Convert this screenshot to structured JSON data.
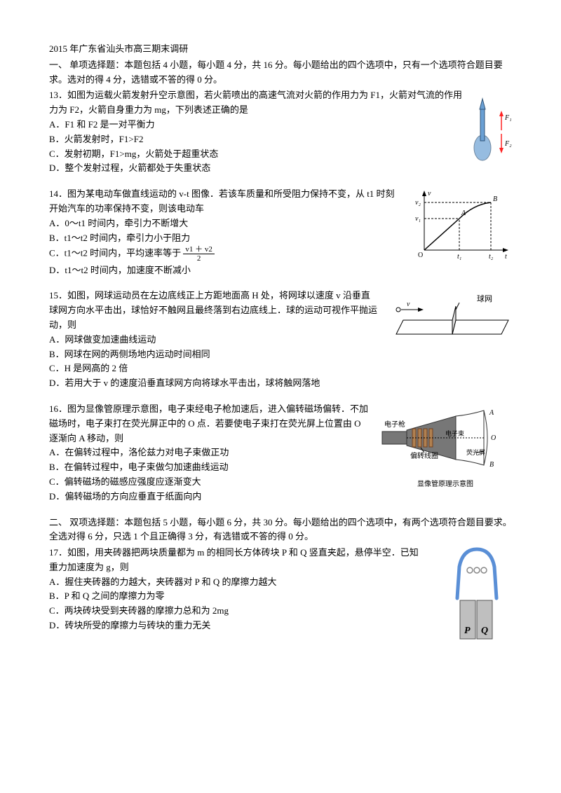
{
  "header": {
    "title": "2015 年广东省汕头市高三期末调研",
    "section1": "一、 单项选择题：本题包括 4 小题，每小题 4 分，共 16 分。每小题给出的四个选项中，只有一个选项符合题目要求。选对的得 4 分，选错或不答的得 0 分。"
  },
  "q13": {
    "stem": "13．如图为运载火箭发射升空示意图，若火箭喷出的高速气流对火箭的作用力为 F1，火箭对气流的作用力为 F2，火箭自身重力为 mg，下列表述正确的是",
    "A": "A．F1 和 F2 是一对平衡力",
    "B": "B．火箭发射时，F1>F2",
    "C": "C．发射初期，F1>mg，火箭处于超重状态",
    "D": "D．整个发射过程，火箭都处于失重状态",
    "fig": {
      "rocket_fill": "#6aa0d4",
      "arrow": "#ff2222",
      "labels": [
        "F₁",
        "F₂"
      ]
    }
  },
  "q14": {
    "stem": "14．图为某电动车做直线运动的 v-t 图像．若该车质量和所受阻力保持不变，从 t1 时刻开始汽车的功率保持不变，则该电动车",
    "A": "A．0～t1 时间内，牵引力不断增大",
    "B": "B．t1～t2 时间内，牵引力小于阻力",
    "C_pre": "C．t1～t2 时间内，平均速率等于",
    "C_num": "v1 ＋ v2",
    "C_den": "2",
    "D": "D．t1～t2 时间内，加速度不断减小",
    "fig": {
      "axis_color": "#000",
      "curve_color": "#000",
      "labels": {
        "O": "O",
        "t1": "t₁",
        "t2": "t₂",
        "t": "t",
        "v": "v",
        "v1": "v₁",
        "v2": "v₂",
        "A": "A",
        "B": "B"
      }
    }
  },
  "q15": {
    "stem": "15．如图，网球运动员在左边底线正上方距地面高 H 处，将网球以速度 v 沿垂直球网方向水平击出，球恰好不触网且最终落到右边底线上．球的运动可视作平抛运动，则",
    "A": "A．网球做变加速曲线运动",
    "B": "B．网球在网的两侧场地内运动时间相同",
    "C": "C．H 是网高的 2 倍",
    "D": "D．若用大于 v 的速度沿垂直球网方向将球水平击出，球将触网落地",
    "fig": {
      "line": "#000",
      "label_net": "球网",
      "label_v": "v"
    }
  },
  "q16": {
    "stem": "16．图为显像管原理示意图，电子束经电子枪加速后，进入偏转磁场偏转．不加磁场时，电子束打在荧光屏正中的 O 点．若要使电子束打在荧光屏上位置由 O 逐渐向 A 移动，则",
    "A": "A．在偏转过程中，洛伦兹力对电子束做正功",
    "B": "B．在偏转过程中，电子束做匀加速曲线运动",
    "C": "C．偏转磁场的磁感应强度应逐渐变大",
    "D": "D．偏转磁场的方向应垂直于纸面向内",
    "fig": {
      "body": "#777",
      "coil": "#b08050",
      "screen": "#fff",
      "line": "#000",
      "labels": {
        "gun": "电子枪",
        "beam": "电子束",
        "coil": "偏转线圈",
        "screen": "荧光屏",
        "caption": "显像管原理示意图",
        "A": "A",
        "O": "O",
        "B": "B"
      }
    }
  },
  "section2": "二、 双项选择题：本题包括 5 小题，每小题 6 分，共 30 分。每小题给出的四个选项中，有两个选项符合题目要求。全选对得 6 分，只选 1 个且正确得 3 分，有选错或不答的得 0 分。",
  "q17": {
    "stem": "17．如图，用夹砖器把两块质量都为 m 的相同长方体砖块 P 和 Q 竖直夹起，悬停半空．已知",
    "stem2": "重力加速度为 g，则",
    "A": "A．握住夹砖器的力越大，夹砖器对 P 和 Q 的摩擦力越大",
    "B": "B．P 和 Q 之间的摩擦力为零",
    "C": "C．两块砖块受到夹砖器的摩擦力总和为 2mg",
    "D": "D．砖块所受的摩擦力与砖块的重力无关",
    "fig": {
      "arm": "#5a8fd6",
      "spring": "#888",
      "brick": "#bfbfbf",
      "brick_stroke": "#555",
      "labels": {
        "P": "P",
        "Q": "Q"
      }
    }
  }
}
